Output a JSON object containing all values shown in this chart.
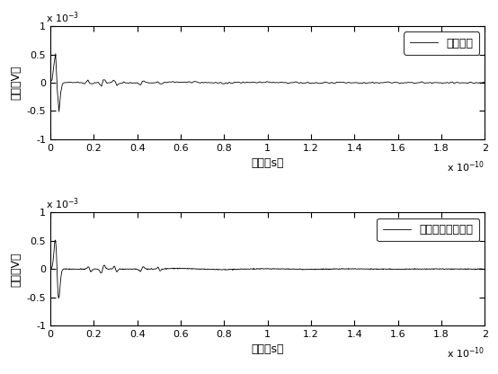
{
  "subplot1_legend": "参考信号",
  "subplot2_legend": "修复后的参考信号",
  "xlabel": "时间（s）",
  "ylabel": "幅度（V）",
  "xlim": [
    0,
    2e-10
  ],
  "ylim": [
    -0.001,
    0.001
  ],
  "xticks": [
    0,
    2e-11,
    4e-11,
    6e-11,
    8e-11,
    1e-10,
    1.2e-10,
    1.4e-10,
    1.6e-10,
    1.8e-10,
    2e-10
  ],
  "xtick_labels": [
    "0",
    "0.2",
    "0.4",
    "0.6",
    "0.8",
    "1",
    "1.2",
    "1.4",
    "1.6",
    "1.8",
    "2"
  ],
  "yticks": [
    -0.001,
    -0.0005,
    0,
    0.0005,
    0.001
  ],
  "ytick_labels": [
    "-1",
    "-0.5",
    "0",
    "0.5",
    "1"
  ],
  "line_color": "#000000",
  "background_color": "#ffffff"
}
